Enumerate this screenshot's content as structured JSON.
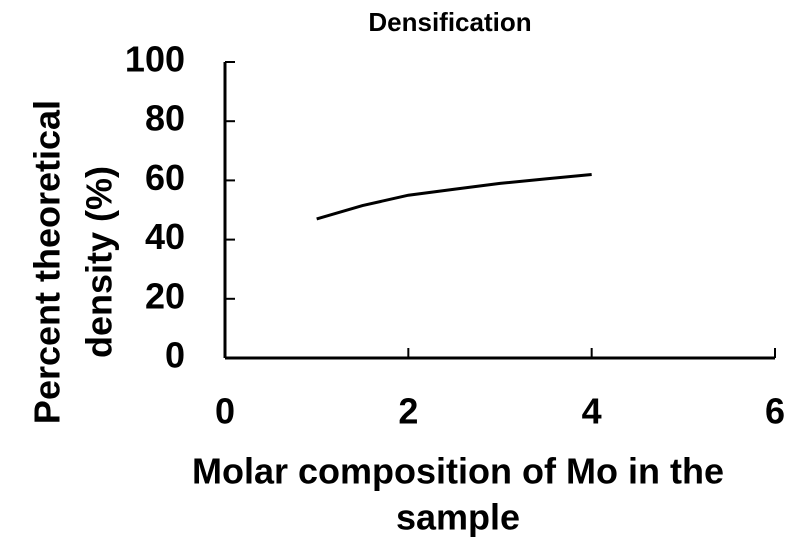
{
  "chart_data": {
    "type": "line",
    "title": "Densification",
    "x_label": [
      "Molar composition of Mo in the",
      "sample"
    ],
    "y_label": [
      "Percent theoretical",
      "density (%)"
    ],
    "x": [
      1,
      1.5,
      2,
      2.5,
      3,
      3.5,
      4
    ],
    "series": [
      {
        "name": "Densification",
        "color": "#000000",
        "values": [
          47,
          51.5,
          55,
          57,
          59,
          60.5,
          62
        ]
      }
    ],
    "xlim": [
      0,
      6
    ],
    "xticks": [
      0,
      2,
      4,
      6
    ],
    "ylim": [
      0,
      100
    ],
    "yticks": [
      0,
      20,
      40,
      60,
      80,
      100
    ]
  }
}
